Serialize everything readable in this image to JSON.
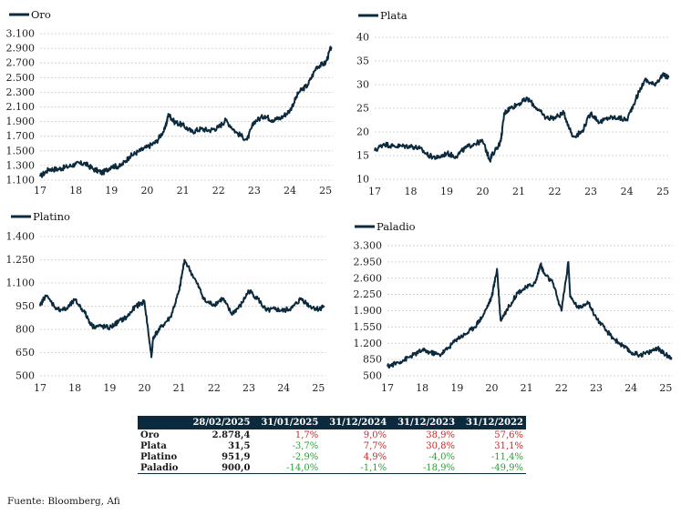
{
  "chart_data": [
    {
      "type": "line",
      "name": "oro",
      "legend": "Oro",
      "color": "#0c2a3d",
      "x_ticks": [
        "17",
        "18",
        "19",
        "20",
        "21",
        "22",
        "23",
        "24",
        "25"
      ],
      "y_ticks": [
        "3.100",
        "2.900",
        "2.700",
        "2.500",
        "2.300",
        "2.100",
        "1.900",
        "1.700",
        "1.500",
        "1.300",
        "1.100"
      ],
      "ylim": [
        1100,
        3100
      ],
      "xlim": [
        2017.0,
        2025.2
      ],
      "grid": "horizontal",
      "x": [
        2017.0,
        2017.25,
        2017.5,
        2017.75,
        2018.0,
        2018.25,
        2018.5,
        2018.75,
        2019.0,
        2019.25,
        2019.5,
        2019.75,
        2020.0,
        2020.25,
        2020.5,
        2020.6,
        2020.75,
        2021.0,
        2021.25,
        2021.5,
        2021.75,
        2022.0,
        2022.2,
        2022.5,
        2022.8,
        2023.0,
        2023.3,
        2023.5,
        2023.75,
        2024.0,
        2024.25,
        2024.5,
        2024.75,
        2025.0,
        2025.16
      ],
      "y": [
        1150,
        1250,
        1250,
        1280,
        1320,
        1330,
        1250,
        1200,
        1290,
        1290,
        1420,
        1490,
        1550,
        1620,
        1800,
        2000,
        1900,
        1850,
        1760,
        1800,
        1780,
        1820,
        1920,
        1750,
        1650,
        1900,
        1980,
        1920,
        1950,
        2050,
        2300,
        2400,
        2650,
        2700,
        2920
      ]
    },
    {
      "type": "line",
      "name": "plata",
      "legend": "Plata",
      "color": "#0c2a3d",
      "x_ticks": [
        "17",
        "18",
        "19",
        "20",
        "21",
        "22",
        "23",
        "24",
        "25"
      ],
      "y_ticks": [
        "40",
        "35",
        "30",
        "25",
        "20",
        "15",
        "10"
      ],
      "ylim": [
        10,
        40
      ],
      "xlim": [
        2017.0,
        2025.2
      ],
      "grid": "horizontal",
      "x": [
        2017.0,
        2017.25,
        2017.5,
        2017.75,
        2018.0,
        2018.25,
        2018.5,
        2018.75,
        2019.0,
        2019.25,
        2019.5,
        2019.75,
        2020.0,
        2020.2,
        2020.25,
        2020.5,
        2020.6,
        2020.75,
        2021.0,
        2021.25,
        2021.5,
        2021.75,
        2022.0,
        2022.25,
        2022.5,
        2022.75,
        2023.0,
        2023.25,
        2023.5,
        2023.75,
        2024.0,
        2024.25,
        2024.5,
        2024.75,
        2025.0,
        2025.16
      ],
      "y": [
        16,
        17.5,
        17,
        17,
        17,
        16.5,
        15,
        14.5,
        15.5,
        14.8,
        16.5,
        17.5,
        18,
        14,
        15,
        18,
        24,
        25,
        26,
        27,
        25,
        23,
        23,
        24,
        19,
        20,
        24,
        22,
        23,
        23,
        22.5,
        27,
        31,
        30,
        32,
        31.5
      ]
    },
    {
      "type": "line",
      "name": "platino",
      "legend": "Platino",
      "color": "#0c2a3d",
      "x_ticks": [
        "17",
        "18",
        "19",
        "20",
        "21",
        "22",
        "23",
        "24",
        "25"
      ],
      "y_ticks": [
        "1.400",
        "1.250",
        "1.100",
        "950",
        "800",
        "650",
        "500"
      ],
      "ylim": [
        500,
        1400
      ],
      "xlim": [
        2017.0,
        2025.2
      ],
      "grid": "horizontal",
      "x": [
        2017.0,
        2017.15,
        2017.5,
        2017.75,
        2018.0,
        2018.25,
        2018.5,
        2018.75,
        2019.0,
        2019.25,
        2019.5,
        2019.75,
        2020.0,
        2020.2,
        2020.25,
        2020.5,
        2020.75,
        2021.0,
        2021.15,
        2021.5,
        2021.75,
        2022.0,
        2022.25,
        2022.5,
        2022.75,
        2023.0,
        2023.25,
        2023.5,
        2023.75,
        2024.0,
        2024.25,
        2024.5,
        2024.75,
        2025.0,
        2025.16
      ],
      "y": [
        950,
        1020,
        930,
        930,
        990,
        920,
        820,
        820,
        810,
        850,
        880,
        950,
        980,
        620,
        750,
        820,
        880,
        1050,
        1250,
        1100,
        980,
        960,
        1000,
        900,
        950,
        1050,
        1000,
        920,
        930,
        920,
        940,
        1000,
        950,
        930,
        952
      ]
    },
    {
      "type": "line",
      "name": "paladio",
      "legend": "Paladio",
      "color": "#0c2a3d",
      "x_ticks": [
        "17",
        "18",
        "19",
        "20",
        "21",
        "22",
        "23",
        "24",
        "25"
      ],
      "y_ticks": [
        "3.300",
        "2.950",
        "2.600",
        "2.250",
        "1.900",
        "1.550",
        "1.200",
        "850",
        "500"
      ],
      "ylim": [
        500,
        3300
      ],
      "xlim": [
        2017.0,
        2025.2
      ],
      "grid": "horizontal",
      "x": [
        2017.0,
        2017.25,
        2017.5,
        2017.75,
        2018.0,
        2018.25,
        2018.5,
        2018.75,
        2019.0,
        2019.25,
        2019.5,
        2019.75,
        2020.0,
        2020.15,
        2020.25,
        2020.5,
        2020.75,
        2021.0,
        2021.25,
        2021.4,
        2021.5,
        2021.75,
        2022.0,
        2022.2,
        2022.25,
        2022.5,
        2022.75,
        2023.0,
        2023.25,
        2023.5,
        2023.75,
        2024.0,
        2024.25,
        2024.5,
        2024.75,
        2025.0,
        2025.16
      ],
      "y": [
        700,
        770,
        850,
        950,
        1050,
        1000,
        950,
        1100,
        1300,
        1400,
        1550,
        1800,
        2200,
        2800,
        1700,
        2000,
        2300,
        2400,
        2500,
        2900,
        2700,
        2500,
        1900,
        2950,
        2200,
        1950,
        2100,
        1750,
        1500,
        1300,
        1150,
        1000,
        950,
        1000,
        1100,
        950,
        900
      ]
    }
  ],
  "table": {
    "headers": [
      "",
      "28/02/2025",
      "31/01/2025",
      "31/12/2024",
      "31/12/2023",
      "31/12/2022"
    ],
    "rows": [
      {
        "name": "Oro",
        "last": "2.878,4",
        "changes": [
          "1,7%",
          "9,0%",
          "38,9%",
          "57,6%"
        ],
        "signs": [
          "pos",
          "pos",
          "pos",
          "pos"
        ]
      },
      {
        "name": "Plata",
        "last": "31,5",
        "changes": [
          "-3,7%",
          "7,7%",
          "30,8%",
          "31,1%"
        ],
        "signs": [
          "neg",
          "pos",
          "pos",
          "pos"
        ]
      },
      {
        "name": "Platino",
        "last": "951,9",
        "changes": [
          "-2,9%",
          "4,9%",
          "-4,0%",
          "-11,4%"
        ],
        "signs": [
          "neg",
          "pos",
          "neg",
          "neg"
        ]
      },
      {
        "name": "Paladio",
        "last": "900,0",
        "changes": [
          "-14,0%",
          "-1,1%",
          "-18,9%",
          "-49,9%"
        ],
        "signs": [
          "neg",
          "neg",
          "neg",
          "neg"
        ]
      }
    ]
  },
  "source": "Fuente: Bloomberg, Afi",
  "colors": {
    "line": "#0c2a3d",
    "header_bg": "#0c2a3d",
    "positive": "#c62828",
    "negative": "#2e9c3a",
    "grid": "#c8c8c8"
  }
}
